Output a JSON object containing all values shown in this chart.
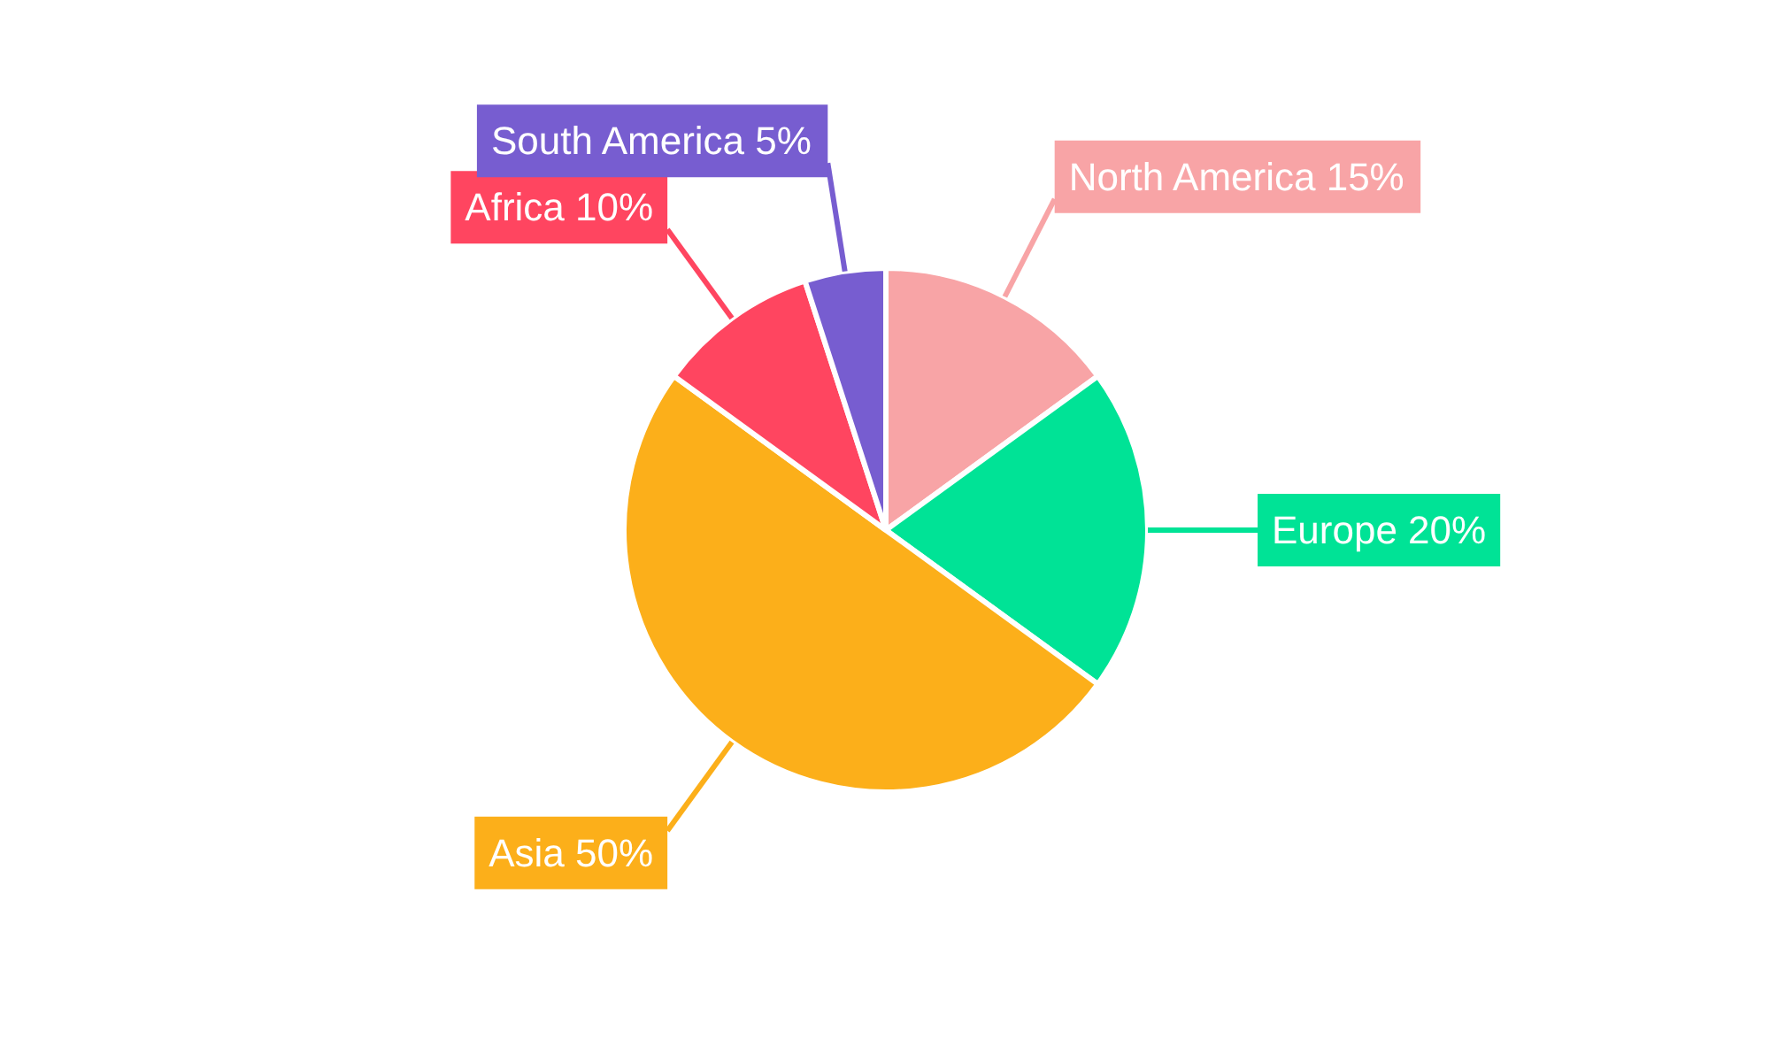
{
  "chart_data": {
    "type": "pie",
    "categories": [
      "North America",
      "Europe",
      "Asia",
      "Africa",
      "South America"
    ],
    "values": [
      15,
      20,
      50,
      10,
      5
    ],
    "colors": [
      "#f8a4a6",
      "#00e396",
      "#fcaf1a",
      "#ff4560",
      "#775dd0"
    ],
    "value_labels": [
      "15%",
      "20%",
      "50%",
      "10%",
      "5%"
    ]
  }
}
